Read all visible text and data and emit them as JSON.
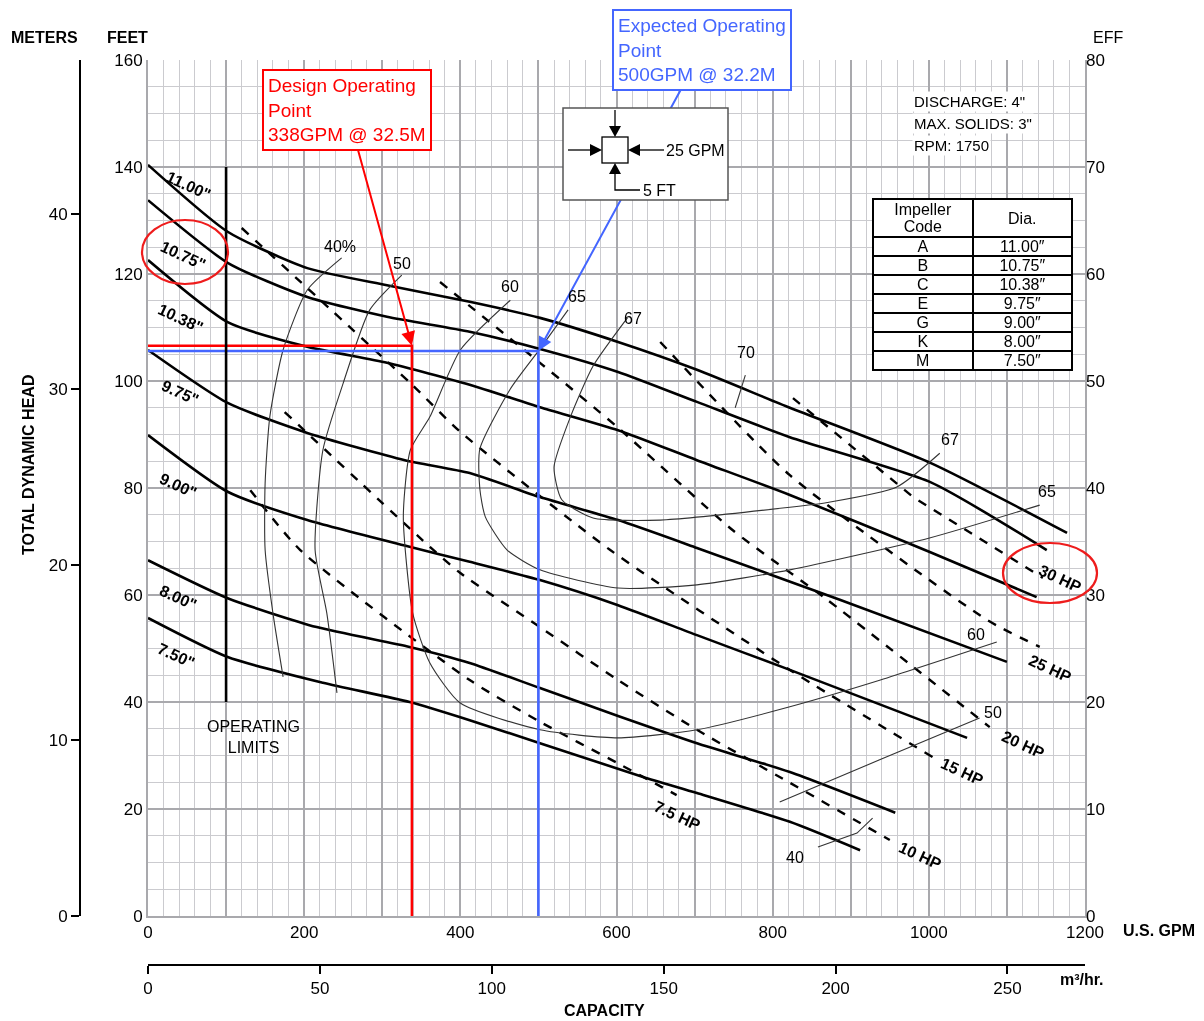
{
  "chart_data": {
    "type": "line",
    "xlabel": "U.S. GPM",
    "ylabel": "FEET",
    "y2label": "EFF",
    "y3label": "METERS",
    "x2label": "m³/hr.",
    "xlim": [
      0,
      1200
    ],
    "xticks": [
      0,
      {
        "value": 100,
        "label": null
      },
      200,
      {
        "value": 300,
        "label": null
      },
      400,
      {
        "value": 500,
        "label": null
      },
      600,
      {
        "value": 700,
        "label": null
      },
      800,
      {
        "value": 900,
        "label": null
      },
      1000,
      {
        "value": 1100,
        "label": null
      },
      1200
    ],
    "ylim": [
      0,
      160
    ],
    "yticks": [
      0,
      20,
      40,
      60,
      80,
      100,
      120,
      140,
      160
    ],
    "y2lim": [
      0,
      80
    ],
    "y2ticks": [
      0,
      10,
      20,
      30,
      40,
      50,
      60,
      70,
      80
    ],
    "y3lim": [
      0,
      48.77
    ],
    "y3ticks": [
      0,
      10,
      20,
      30,
      40
    ],
    "x2lim": [
      0,
      272.55
    ],
    "x2ticks": [
      0,
      50,
      100,
      150,
      200,
      250
    ],
    "grid": true,
    "series": [
      {
        "color": "#000000",
        "x": [
          0,
          102,
          204,
          306,
          412,
          502,
          602,
          703,
          822,
          1002,
          1177
        ],
        "values": [
          140.4,
          127.9,
          121.1,
          117.9,
          114.8,
          111.8,
          107.3,
          102.1,
          95.0,
          84.7,
          71.6
        ]
      },
      {
        "color": "#000000",
        "x": [
          0,
          102,
          204,
          306,
          412,
          502,
          602,
          703,
          822,
          1002,
          1151
        ],
        "values": [
          133.8,
          122.1,
          115.7,
          112.0,
          109.2,
          106.0,
          101.7,
          96.1,
          89.5,
          81.1,
          68.4
        ]
      },
      {
        "color": "#000000",
        "x": [
          0,
          102,
          204,
          306,
          412,
          502,
          602,
          703,
          822,
          1002,
          1138
        ],
        "values": [
          122.6,
          111.0,
          106.4,
          103.4,
          99.3,
          95.1,
          90.8,
          85.2,
          78.7,
          68.0,
          59.6
        ]
      },
      {
        "color": "#000000",
        "x": [
          0,
          102,
          204,
          329,
          412,
          502,
          602,
          703,
          886,
          1100
        ],
        "values": [
          105.8,
          95.9,
          90.3,
          85.2,
          82.8,
          78.3,
          74.0,
          68.8,
          59.1,
          47.5
        ]
      },
      {
        "color": "#000000",
        "x": [
          0,
          102,
          204,
          335,
          412,
          502,
          602,
          703,
          822,
          1049
        ],
        "values": [
          89.9,
          79.3,
          74.0,
          69.0,
          66.2,
          62.8,
          58.1,
          52.5,
          46.0,
          33.3
        ]
      },
      {
        "color": "#000000",
        "x": [
          0,
          102,
          216,
          335,
          412,
          502,
          602,
          703,
          822,
          957
        ],
        "values": [
          66.5,
          59.4,
          54.0,
          50.3,
          47.3,
          42.6,
          37.4,
          32.3,
          26.9,
          19.3
        ]
      },
      {
        "color": "#000000",
        "x": [
          0,
          102,
          224,
          335,
          412,
          502,
          634,
          703,
          822,
          912
        ],
        "values": [
          55.7,
          48.4,
          43.6,
          40.0,
          36.6,
          32.3,
          26.0,
          23.0,
          17.6,
          12.3
        ]
      },
      {
        "color": "#000000",
        "line_style": "dashed",
        "x": [
          826,
          980,
          1146
        ],
        "values": [
          96.8,
          78.3,
          63.2
        ]
      },
      {
        "color": "#000000",
        "line_style": "dashed",
        "x": [
          656,
          822,
          1075,
          1142
        ],
        "values": [
          107.3,
          82.4,
          55.3,
          50.3
        ]
      },
      {
        "color": "#000000",
        "line_style": "dashed",
        "x": [
          374,
          502,
          601,
          749,
          870,
          1078
        ],
        "values": [
          118.5,
          103.4,
          91.4,
          72.1,
          59.1,
          35.3
        ]
      },
      {
        "color": "#000000",
        "line_style": "dashed",
        "x": [
          120,
          336,
          400,
          592,
          822,
          1005
        ],
        "values": [
          128.6,
          99.6,
          90.5,
          68.4,
          46.0,
          29.7
        ]
      },
      {
        "color": "#000000",
        "line_style": "dashed",
        "x": [
          175,
          361,
          400,
          502,
          602,
          703,
          822,
          950
        ],
        "values": [
          94.2,
          69.0,
          64.1,
          54.0,
          44.1,
          34.8,
          24.9,
          14.2
        ]
      },
      {
        "color": "#000000",
        "line_style": "dashed",
        "x": [
          131,
          195,
          412,
          502,
          601,
          677
        ],
        "values": [
          79.6,
          68.4,
          44.1,
          36.3,
          28.6,
          22.6
        ]
      },
      {
        "color": "#333333",
        "x": [
          248,
          204,
          173,
          156,
          150,
          150,
          160,
          173
        ],
        "values": [
          123.0,
          117.0,
          105.8,
          93.3,
          80.9,
          68.4,
          56.6,
          44.7
        ]
      },
      {
        "color": "#333333",
        "x": [
          858,
          908,
          928
        ],
        "values": [
          12.9,
          15.5,
          18.3
        ]
      },
      {
        "color": "#333333",
        "x": [
          325,
          284,
          250,
          224,
          214,
          229,
          242
        ],
        "values": [
          119.8,
          113.3,
          99.6,
          87.1,
          68.4,
          56.6,
          41.7
        ]
      },
      {
        "color": "#333333",
        "x": [
          809,
          937,
          1065
        ],
        "values": [
          21.3,
          29.2,
          37.0
        ]
      },
      {
        "color": "#333333",
        "x": [
          464,
          400,
          361,
          336,
          327,
          339,
          361,
          400,
          502,
          602,
          703,
          822,
          938,
          1087
        ],
        "values": [
          115.1,
          105.8,
          93.3,
          87.1,
          74.6,
          56.6,
          47.3,
          39.8,
          34.8,
          33.3,
          34.8,
          39.1,
          44.1,
          51.2
        ]
      },
      {
        "color": "#333333",
        "x": [
          538,
          502,
          464,
          425,
          425,
          432,
          460,
          502,
          602,
          703,
          822,
          1002,
          1142
        ],
        "values": [
          113.3,
          106.0,
          98.5,
          87.3,
          79.8,
          74.6,
          68.4,
          64.7,
          61.3,
          61.9,
          64.7,
          70.7,
          76.8
        ]
      },
      {
        "color": "#333333",
        "x": [
          614,
          570,
          541,
          520,
          530,
          570,
          656,
          822,
          870,
          959,
          1014
        ],
        "values": [
          111.8,
          102.8,
          93.3,
          83.9,
          77.8,
          74.4,
          74.0,
          76.4,
          77.3,
          80.2,
          86.5
        ]
      },
      {
        "color": "#333333",
        "x": [
          765,
          752
        ],
        "values": [
          101.1,
          95.0
        ]
      },
      {
        "color": "#4466ff",
        "x": [
          0,
          500,
          500
        ],
        "values": [
          105.6,
          105.6,
          0
        ]
      },
      {
        "color": "#ff0000",
        "x": [
          0,
          338,
          338
        ],
        "values": [
          106.6,
          106.6,
          0
        ]
      },
      {
        "color": "#000000",
        "x": [
          100,
          100
        ],
        "values": [
          40,
          140
        ]
      }
    ],
    "annotations": [
      {
        "text": "Design Operating\nPoint\n338GPM @ 32.5M",
        "x": 338,
        "y": 106.6
      },
      {
        "text": "Expected Operating\nPoint\n500GPM @ 32.2M",
        "x": 500,
        "y": 105.6
      },
      "OPERATING\nLIMITS",
      "11.00\"",
      "10.75\"",
      "10.38\"",
      "9.75\"",
      "9.00\"",
      "8.00\"",
      "7.50\"",
      "30 HP",
      "25 HP",
      "20 HP",
      "15 HP",
      "10 HP",
      "7.5 HP",
      "40%",
      "50",
      "60",
      "65",
      "67",
      "70",
      "67",
      "65",
      "60",
      "50",
      "40",
      "DISCHARGE: 4\"",
      "MAX. SOLIDS: 3\"",
      "RPM: 1750",
      "Impeller Code",
      "Dia.",
      "A",
      "11.00″",
      "B",
      "10.75″",
      "C",
      "10.38″",
      "E",
      "9.75″",
      "G",
      "9.00″",
      "K",
      "8.00″",
      "M",
      "7.50″",
      "25 GPM",
      "5 FT",
      "CAPACITY",
      "TOTAL DYNAMIC HEAD"
    ]
  }
}
